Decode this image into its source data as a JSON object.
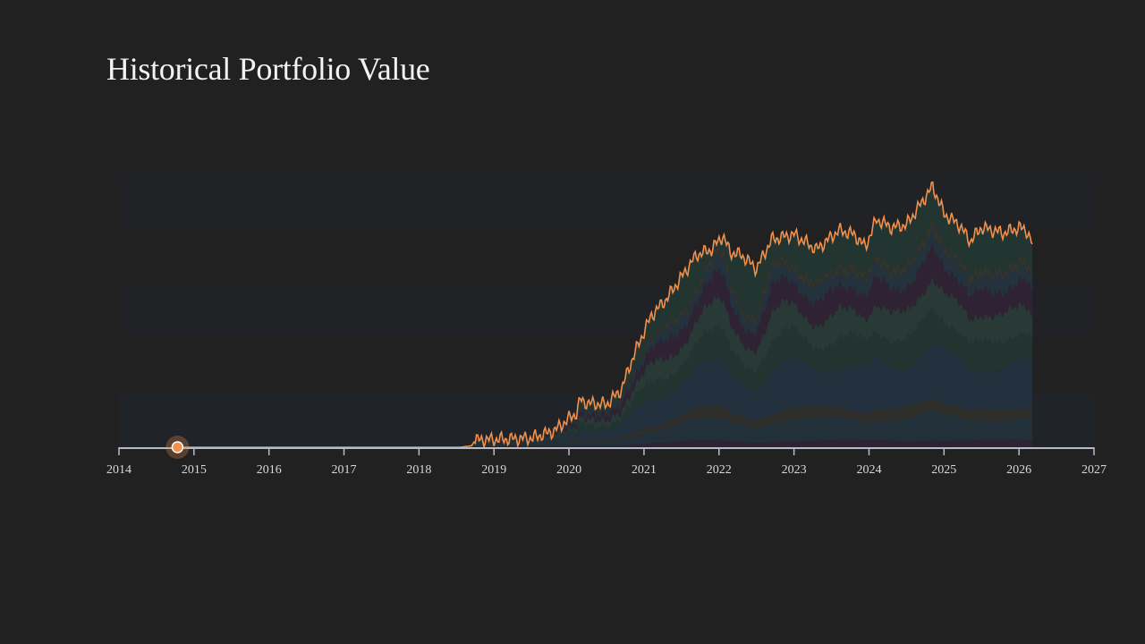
{
  "title": "Historical Portfolio Value",
  "chart_data": {
    "type": "area",
    "stacked": true,
    "title": "Historical Portfolio Value",
    "xlabel": "",
    "ylabel": "",
    "xlim": [
      2014,
      2027
    ],
    "ylim": [
      0,
      100
    ],
    "y_axis_shown": false,
    "grid": false,
    "x_ticks": [
      "2014",
      "2015",
      "2016",
      "2017",
      "2018",
      "2019",
      "2020",
      "2021",
      "2022",
      "2023",
      "2024",
      "2025",
      "2026",
      "2027"
    ],
    "total_line_color": "#f2904d",
    "marker": {
      "x": 2014.78,
      "y": 0,
      "color": "#f2904d"
    },
    "total": {
      "x": [
        2014.78,
        2018.55,
        2018.7,
        2018.75,
        2019.2,
        2019.5,
        2019.8,
        2020.0,
        2020.1,
        2020.15,
        2020.25,
        2020.5,
        2020.7,
        2020.8,
        2020.95,
        2021.1,
        2021.3,
        2021.5,
        2021.7,
        2021.9,
        2022.05,
        2022.15,
        2022.3,
        2022.5,
        2022.7,
        2023.0,
        2023.3,
        2023.6,
        2023.8,
        2023.95,
        2024.1,
        2024.3,
        2024.5,
        2024.7,
        2024.85,
        2025.0,
        2025.2,
        2025.35,
        2025.5,
        2025.8,
        2026.0,
        2026.1,
        2026.18
      ],
      "values": [
        0,
        0,
        0.5,
        2.6,
        3.0,
        3.3,
        5.9,
        10.4,
        12.4,
        17.3,
        16,
        15.6,
        21,
        29,
        39,
        48,
        54,
        62,
        70,
        72,
        77,
        71,
        70,
        65,
        75.6,
        77.5,
        72,
        79,
        77.5,
        73,
        83,
        80,
        81,
        89,
        95,
        85,
        81,
        75,
        80,
        78,
        80,
        79,
        74
      ]
    },
    "series": [
      {
        "share": 0.03,
        "color": "#2e2333"
      },
      {
        "share": 0.1,
        "color": "#223039"
      },
      {
        "share": 0.05,
        "color": "#2e2f2a"
      },
      {
        "share": 0.2,
        "color": "#21303c"
      },
      {
        "share": 0.13,
        "color": "#233430"
      },
      {
        "share": 0.12,
        "color": "#293a36"
      },
      {
        "share": 0.11,
        "color": "#2e2233"
      },
      {
        "share": 0.07,
        "color": "#24323d"
      },
      {
        "share": 0.03,
        "color": "#33342c"
      },
      {
        "share": 0.16,
        "color": "#233531"
      }
    ],
    "background": "#212121",
    "axis_color": "#b8bcc8"
  }
}
